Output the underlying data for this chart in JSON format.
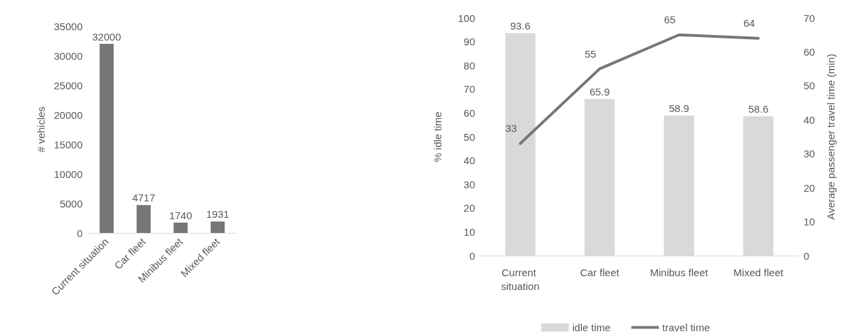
{
  "chart_data": [
    {
      "type": "bar",
      "ylabel": "# vehicles",
      "categories": [
        "Current situation",
        "Car fleet",
        "Minibus fleet",
        "Mixed fleet"
      ],
      "values": [
        32000,
        4717,
        1740,
        1931
      ],
      "color": "#767676",
      "ylim": [
        0,
        35000
      ],
      "yticks": [
        0,
        5000,
        10000,
        15000,
        20000,
        25000,
        30000,
        35000
      ],
      "data_labels": true,
      "grid": false,
      "legend": false
    },
    {
      "type": "bar",
      "ylabel": "% idle time",
      "y2label": "Average passenger travel time (min)",
      "categories": [
        "Current situation",
        "Car fleet",
        "Minibus fleet",
        "Mixed fleet"
      ],
      "series": [
        {
          "name": "idle time",
          "color": "#d9d9d9",
          "values": [
            93.6,
            65.9,
            58.9,
            58.6
          ]
        },
        {
          "name": "travel time",
          "type": "line",
          "axis": "y2",
          "color": "#767676",
          "values": [
            33,
            55,
            65,
            64
          ]
        }
      ],
      "ylim": [
        0,
        100
      ],
      "yticks": [
        0,
        10,
        20,
        30,
        40,
        50,
        60,
        70,
        80,
        90,
        100
      ],
      "y2lim": [
        0,
        70
      ],
      "y2ticks": [
        0,
        10,
        20,
        30,
        40,
        50,
        60,
        70
      ],
      "data_labels": true,
      "grid": false,
      "legend": "bottom",
      "marker": "none"
    }
  ]
}
